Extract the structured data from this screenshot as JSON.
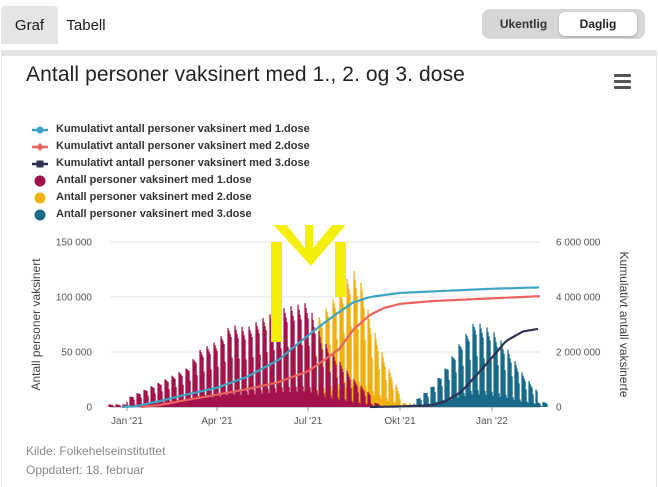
{
  "tabs": [
    {
      "label": "Graf",
      "active": true
    },
    {
      "label": "Tabell",
      "active": false
    }
  ],
  "period_toggle": {
    "weekly_label": "Ukentlig",
    "daily_label": "Daglig",
    "selected": "Daglig"
  },
  "menu_icon": "hamburger-menu-icon",
  "footer": {
    "source": "Kilde: Folkehelseinstituttet",
    "updated": "Oppdatert: 18. februar"
  },
  "colors": {
    "cumulative_dose1": "#3ba6c4",
    "cumulative_dose2": "#e8635f",
    "cumulative_dose3": "#303254",
    "daily_dose1": "#a3124a",
    "daily_dose2": "#f1b10f",
    "daily_dose3": "#196b89",
    "annotation": "#f5ee0c"
  },
  "chart_data": {
    "type": "bar",
    "title": "Antall personer vaksinert med 1., 2. og 3. dose",
    "ylabel": "Antall personer vaksinert",
    "y2label": "Kumulativt antall vaksinerte",
    "ylim": [
      0,
      150000
    ],
    "y2lim": [
      0,
      6000000
    ],
    "yticks": [
      "0",
      "50 000",
      "100 000",
      "150 000"
    ],
    "y2ticks": [
      "0",
      "2 000 000",
      "4 000 000",
      "6 000 000"
    ],
    "xlim": [
      "2020-12-15",
      "2022-02-18"
    ],
    "xticks": [
      {
        "date": "2021-01-01",
        "label": "Jan '21"
      },
      {
        "date": "2021-04-01",
        "label": "Apr '21"
      },
      {
        "date": "2021-07-01",
        "label": "Jul '21"
      },
      {
        "date": "2021-10-01",
        "label": "Okt '21"
      },
      {
        "date": "2022-01-01",
        "label": "Jan '22"
      }
    ],
    "legend_position": "top-left",
    "series": [
      {
        "name": "Kumulativt antall personer vaksinert med 1.dose",
        "type": "line",
        "axis": "right",
        "dates": [
          "2020-12-27",
          "2021-01-10",
          "2021-02-01",
          "2021-03-01",
          "2021-04-01",
          "2021-05-01",
          "2021-06-01",
          "2021-07-01",
          "2021-07-15",
          "2021-08-01",
          "2021-08-15",
          "2021-09-01",
          "2021-10-01",
          "2021-11-01",
          "2021-12-01",
          "2022-01-01",
          "2022-02-18"
        ],
        "values": [
          0,
          30000,
          200000,
          450000,
          700000,
          1100000,
          1700000,
          2600000,
          3000000,
          3450000,
          3800000,
          4000000,
          4150000,
          4200000,
          4250000,
          4300000,
          4350000
        ]
      },
      {
        "name": "Kumulativt antall personer vaksinert med 2.dose",
        "type": "line",
        "axis": "right",
        "dates": [
          "2021-01-15",
          "2021-02-01",
          "2021-03-01",
          "2021-04-01",
          "2021-05-01",
          "2021-06-01",
          "2021-07-01",
          "2021-07-15",
          "2021-08-01",
          "2021-08-15",
          "2021-09-01",
          "2021-09-15",
          "2021-10-01",
          "2021-11-01",
          "2021-12-01",
          "2022-01-01",
          "2022-02-18"
        ],
        "values": [
          0,
          60000,
          250000,
          450000,
          650000,
          900000,
          1300000,
          1650000,
          2100000,
          2800000,
          3350000,
          3600000,
          3750000,
          3850000,
          3900000,
          3950000,
          4030000
        ]
      },
      {
        "name": "Kumulativt antall personer vaksinert med 3.dose",
        "type": "line",
        "axis": "right",
        "dates": [
          "2021-09-01",
          "2021-10-01",
          "2021-11-01",
          "2021-11-15",
          "2021-12-01",
          "2021-12-15",
          "2022-01-01",
          "2022-01-15",
          "2022-02-01",
          "2022-02-18"
        ],
        "values": [
          0,
          20000,
          60000,
          200000,
          550000,
          1100000,
          1800000,
          2400000,
          2750000,
          2850000
        ]
      },
      {
        "name": "Antall personer vaksinert med 1.dose",
        "type": "bar",
        "axis": "left",
        "dates": [
          "2021-01-01",
          "2021-02-01",
          "2021-03-01",
          "2021-03-15",
          "2021-04-01",
          "2021-04-15",
          "2021-05-01",
          "2021-05-15",
          "2021-06-01",
          "2021-06-15",
          "2021-07-01",
          "2021-07-15",
          "2021-08-01",
          "2021-08-15",
          "2021-09-01"
        ],
        "values": [
          8000,
          22000,
          35000,
          52000,
          60000,
          75000,
          72000,
          80000,
          88000,
          92000,
          95000,
          62000,
          42000,
          26000,
          12000
        ]
      },
      {
        "name": "Antall personer vaksinert med 2.dose",
        "type": "bar",
        "axis": "left",
        "dates": [
          "2021-02-01",
          "2021-03-01",
          "2021-04-01",
          "2021-05-01",
          "2021-06-01",
          "2021-06-15",
          "2021-07-01",
          "2021-07-15",
          "2021-08-01",
          "2021-08-15",
          "2021-08-25",
          "2021-09-01",
          "2021-09-15",
          "2021-10-01"
        ],
        "values": [
          12000,
          25000,
          32000,
          36000,
          45000,
          55000,
          70000,
          85000,
          105000,
          125000,
          110000,
          80000,
          45000,
          12000
        ]
      },
      {
        "name": "Antall personer vaksinert med 3.dose",
        "type": "bar",
        "axis": "left",
        "dates": [
          "2021-10-15",
          "2021-11-01",
          "2021-11-15",
          "2021-12-01",
          "2021-12-15",
          "2022-01-01",
          "2022-01-15",
          "2022-02-01",
          "2022-02-15"
        ],
        "values": [
          5000,
          18000,
          35000,
          60000,
          78000,
          70000,
          55000,
          30000,
          15000
        ]
      }
    ],
    "annotations": [
      {
        "type": "arrow",
        "color": "#f5ee0c",
        "description": "Yellow downward arrow drawn near June 2021"
      }
    ]
  }
}
